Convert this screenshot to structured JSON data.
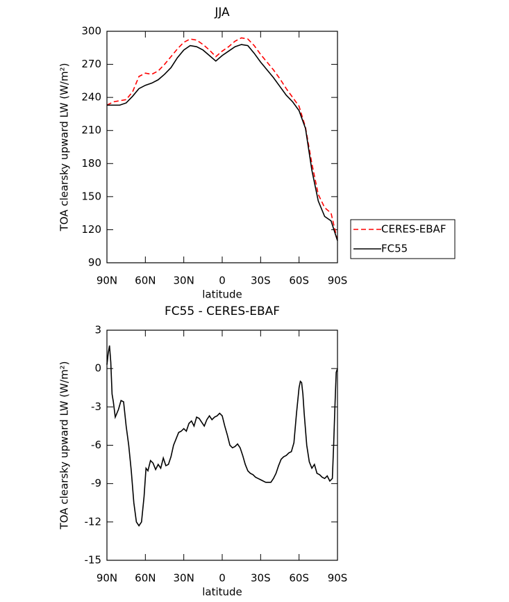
{
  "chart_data": [
    {
      "type": "line",
      "title": "JJA",
      "xlabel": "latitude",
      "ylabel": "TOA clearsky upward LW (W/m²)",
      "x": [
        90,
        85,
        80,
        75,
        70,
        65,
        60,
        55,
        50,
        45,
        40,
        35,
        30,
        25,
        20,
        15,
        10,
        5,
        0,
        -5,
        -10,
        -15,
        -20,
        -25,
        -30,
        -35,
        -40,
        -45,
        -50,
        -55,
        -60,
        -65,
        -70,
        -75,
        -80,
        -85,
        -90
      ],
      "series": [
        {
          "name": "CERES-EBAF",
          "color": "#ff0000",
          "dash": true,
          "values": [
            233,
            236,
            237,
            238,
            245,
            259,
            262,
            261,
            264,
            270,
            277,
            284,
            290,
            293,
            292,
            288,
            283,
            277,
            282,
            286,
            291,
            294,
            293,
            287,
            279,
            272,
            265,
            257,
            248,
            240,
            232,
            213,
            180,
            152,
            140,
            135,
            110
          ]
        },
        {
          "name": "FC55",
          "color": "#000000",
          "dash": false,
          "values": [
            233,
            233,
            233,
            235,
            241,
            248,
            251,
            253,
            256,
            261,
            267,
            276,
            283,
            287,
            286,
            283,
            278,
            273,
            278,
            282,
            286,
            288,
            287,
            280,
            272,
            265,
            258,
            250,
            242,
            236,
            228,
            212,
            174,
            146,
            132,
            128,
            110
          ]
        }
      ],
      "xlim": [
        90,
        -90
      ],
      "xticks": [
        {
          "value": 90,
          "label": "90N"
        },
        {
          "value": 60,
          "label": "60N"
        },
        {
          "value": 30,
          "label": "30N"
        },
        0,
        {
          "value": -30,
          "label": "30S"
        },
        {
          "value": -60,
          "label": "60S"
        },
        {
          "value": -90,
          "label": "90S"
        }
      ],
      "ylim": [
        90,
        300
      ],
      "yticks": [
        90,
        120,
        150,
        180,
        210,
        240,
        270,
        300
      ],
      "legend": "outside-right"
    },
    {
      "type": "line",
      "title": "FC55 - CERES-EBAF",
      "xlabel": "latitude",
      "ylabel": "TOA clearsky upward LW (W/m²)",
      "x": [
        90,
        89,
        88,
        87,
        86,
        85,
        83.5,
        81,
        79,
        77,
        75,
        73,
        71,
        69,
        67,
        65,
        63,
        61,
        59.5,
        58,
        56,
        54,
        52,
        50,
        48,
        46,
        44,
        42,
        40,
        38,
        36,
        34,
        32,
        30,
        28,
        26,
        24,
        22,
        20,
        18,
        16,
        14,
        12,
        10,
        8,
        6,
        4,
        2,
        0,
        -2,
        -4,
        -6,
        -8,
        -10,
        -12,
        -14,
        -16,
        -18,
        -20,
        -22,
        -24,
        -26,
        -28,
        -30,
        -32,
        -34,
        -36,
        -38,
        -40,
        -42,
        -44,
        -46,
        -48,
        -50,
        -52,
        -54,
        -56,
        -58,
        -60,
        -61,
        -62,
        -63,
        -64,
        -66,
        -68,
        -70,
        -72,
        -74,
        -76,
        -78,
        -80,
        -82,
        -84,
        -86,
        -87,
        -88,
        -89,
        -90
      ],
      "color": "#000000",
      "values": [
        0.3,
        1.2,
        1.8,
        0.5,
        -2.0,
        -2.6,
        -3.8,
        -3.2,
        -2.5,
        -2.6,
        -4.5,
        -6.0,
        -8.0,
        -10.5,
        -12.0,
        -12.3,
        -12.0,
        -10.0,
        -7.8,
        -8.0,
        -7.2,
        -7.4,
        -7.9,
        -7.5,
        -7.8,
        -7.0,
        -7.6,
        -7.5,
        -6.9,
        -6.0,
        -5.5,
        -5.0,
        -4.9,
        -4.7,
        -4.9,
        -4.3,
        -4.1,
        -4.5,
        -3.8,
        -3.9,
        -4.2,
        -4.5,
        -4.0,
        -3.7,
        -4.0,
        -3.8,
        -3.7,
        -3.5,
        -3.7,
        -4.5,
        -5.2,
        -6.0,
        -6.2,
        -6.1,
        -5.9,
        -6.2,
        -6.8,
        -7.5,
        -8.0,
        -8.2,
        -8.3,
        -8.5,
        -8.6,
        -8.7,
        -8.8,
        -8.9,
        -8.9,
        -8.9,
        -8.6,
        -8.2,
        -7.6,
        -7.1,
        -6.9,
        -6.8,
        -6.6,
        -6.5,
        -5.8,
        -3.5,
        -1.5,
        -1.0,
        -1.1,
        -2.0,
        -3.5,
        -6.0,
        -7.3,
        -7.8,
        -7.5,
        -8.2,
        -8.3,
        -8.5,
        -8.6,
        -8.4,
        -8.8,
        -8.6,
        -6.0,
        -3.0,
        -0.3,
        0
      ],
      "xlim": [
        90,
        -90
      ],
      "xticks": [
        {
          "value": 90,
          "label": "90N"
        },
        {
          "value": 60,
          "label": "60N"
        },
        {
          "value": 30,
          "label": "30N"
        },
        0,
        {
          "value": -30,
          "label": "30S"
        },
        {
          "value": -60,
          "label": "60S"
        },
        {
          "value": -90,
          "label": "90S"
        }
      ],
      "ylim": [
        -15,
        3
      ],
      "yticks": [
        -15,
        -12,
        -9,
        -6,
        -3,
        0,
        3
      ]
    }
  ]
}
